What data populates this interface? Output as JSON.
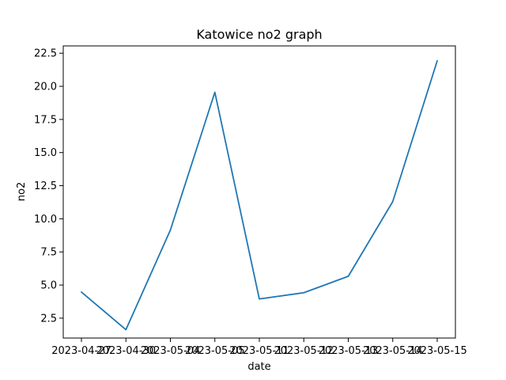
{
  "chart_data": {
    "type": "line",
    "title": "Katowice no2 graph",
    "xlabel": "date",
    "ylabel": "no2",
    "x": [
      "2023-04-27",
      "2023-04-30",
      "2023-05-04",
      "2023-05-05",
      "2023-05-11",
      "2023-05-12",
      "2023-05-13",
      "2023-05-14",
      "2023-05-15"
    ],
    "series": [
      {
        "values": [
          4.47,
          1.63,
          9.15,
          19.55,
          3.95,
          4.42,
          5.66,
          11.3,
          21.92
        ],
        "color": "#1f77b4"
      }
    ],
    "ylim": [
      1.0,
      23.05
    ],
    "yticks": [
      "2.5",
      "5.0",
      "7.5",
      "10.0",
      "12.5",
      "15.0",
      "17.5",
      "20.0",
      "22.5"
    ],
    "grid": false,
    "legend": "none"
  }
}
